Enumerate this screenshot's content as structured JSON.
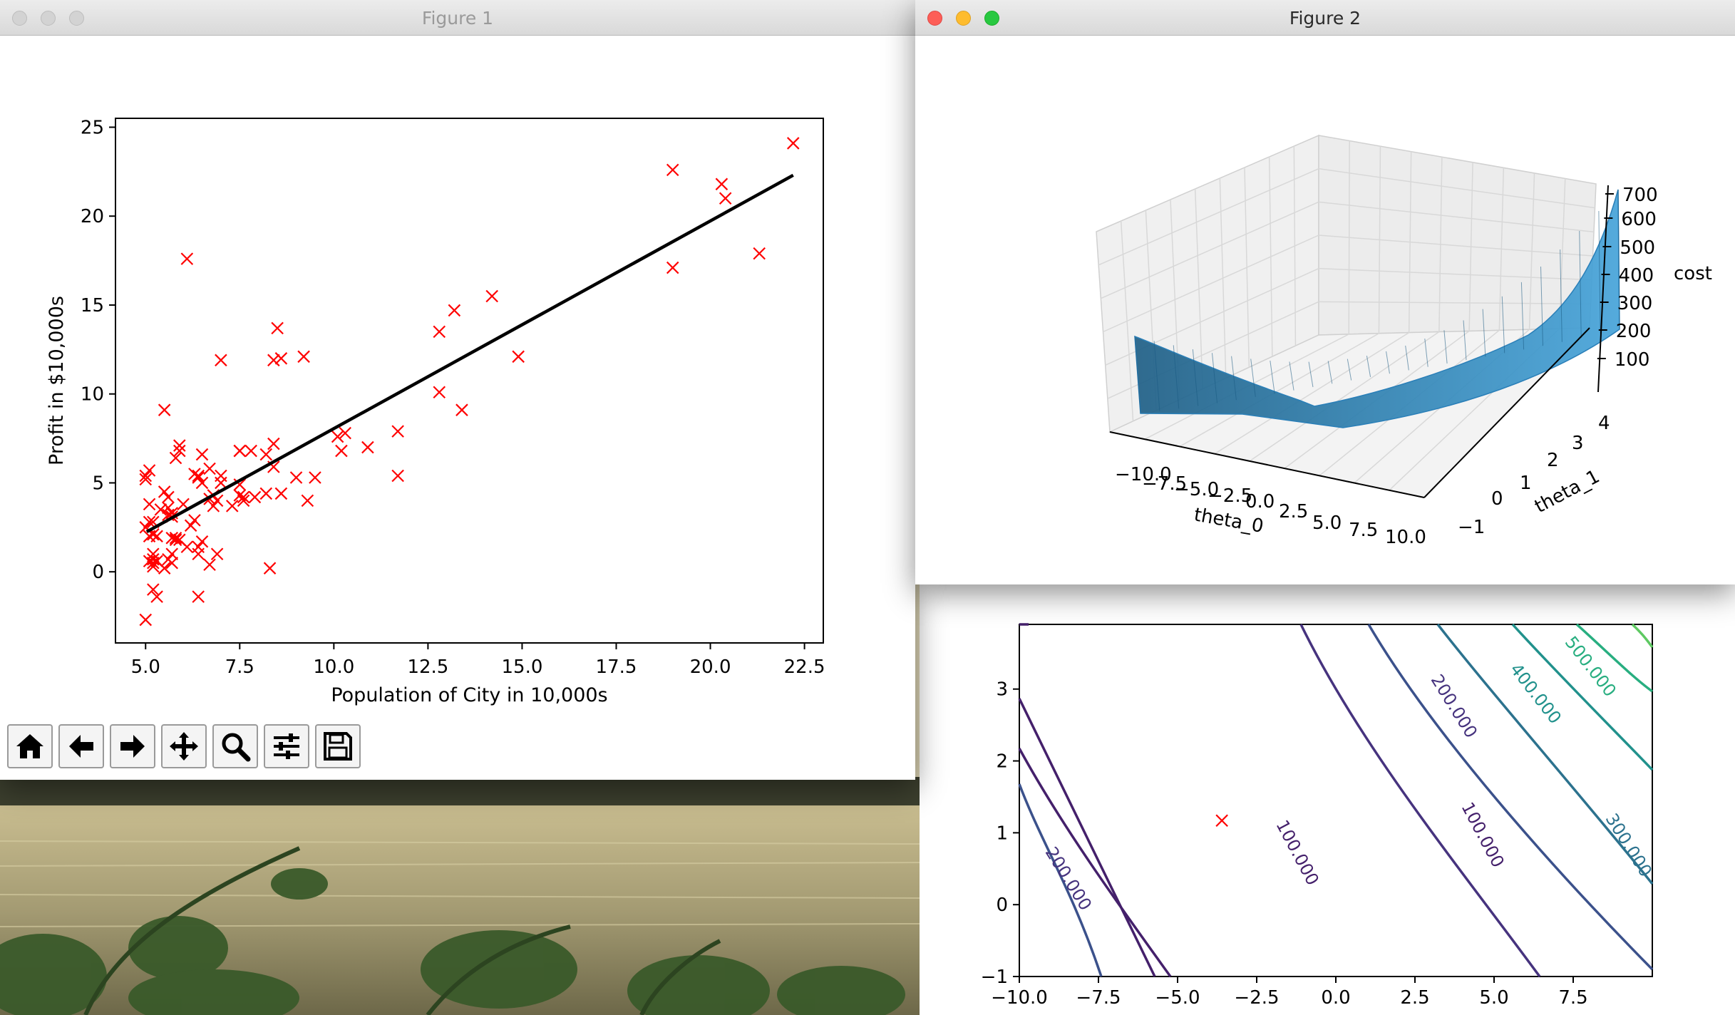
{
  "figure1": {
    "window_title": "Figure 1",
    "chart_data": {
      "type": "scatter",
      "title": "",
      "xlabel": "Population of City in 10,000s",
      "ylabel": "Profit in $10,000s",
      "xlim": [
        4.2,
        23.0
      ],
      "ylim": [
        -4.0,
        25.5
      ],
      "xticks": [
        "5.0",
        "7.5",
        "10.0",
        "12.5",
        "15.0",
        "17.5",
        "20.0",
        "22.5"
      ],
      "yticks": [
        "0",
        "5",
        "10",
        "15",
        "20",
        "25"
      ],
      "marker_color": "#ff0000",
      "line_color": "#000000",
      "points": [
        [
          6.1,
          17.6
        ],
        [
          5.5,
          9.1
        ],
        [
          8.5,
          13.7
        ],
        [
          7.0,
          11.9
        ],
        [
          5.9,
          6.8
        ],
        [
          8.4,
          11.9
        ],
        [
          7.5,
          4.3
        ],
        [
          8.6,
          12.0
        ],
        [
          6.5,
          6.6
        ],
        [
          5.1,
          3.8
        ],
        [
          5.7,
          3.3
        ],
        [
          14.2,
          15.5
        ],
        [
          5.7,
          3.1
        ],
        [
          8.4,
          7.2
        ],
        [
          5.6,
          0.7
        ],
        [
          5.4,
          3.5
        ],
        [
          6.4,
          5.4
        ],
        [
          5.1,
          5.7
        ],
        [
          6.0,
          3.8
        ],
        [
          5.2,
          0.7
        ],
        [
          9.2,
          12.1
        ],
        [
          5.0,
          5.2
        ],
        [
          8.2,
          6.6
        ],
        [
          6.2,
          2.6
        ],
        [
          5.9,
          1.8
        ],
        [
          12.8,
          13.5
        ],
        [
          6.4,
          5.3
        ],
        [
          5.1,
          2.8
        ],
        [
          10.3,
          7.8
        ],
        [
          5.1,
          0.6
        ],
        [
          6.4,
          1.4
        ],
        [
          6.7,
          5.8
        ],
        [
          5.2,
          0.5
        ],
        [
          5.2,
          2.1
        ],
        [
          6.3,
          5.5
        ],
        [
          5.5,
          0.2
        ],
        [
          5.8,
          6.4
        ],
        [
          6.8,
          3.7
        ],
        [
          5.3,
          0.6
        ],
        [
          5.9,
          7.1
        ],
        [
          8.4,
          5.9
        ],
        [
          5.7,
          1.0
        ],
        [
          8.6,
          4.4
        ],
        [
          9.3,
          4.0
        ],
        [
          5.6,
          3.6
        ],
        [
          13.2,
          14.7
        ],
        [
          6.1,
          1.4
        ],
        [
          6.9,
          1.0
        ],
        [
          5.2,
          -1.0
        ],
        [
          5.8,
          1.9
        ],
        [
          5.6,
          3.2
        ],
        [
          5.2,
          2.8
        ],
        [
          5.1,
          2.0
        ],
        [
          10.9,
          7.0
        ],
        [
          6.9,
          4.0
        ],
        [
          12.8,
          10.1
        ],
        [
          7.6,
          4.0
        ],
        [
          11.7,
          7.9
        ],
        [
          11.7,
          5.4
        ],
        [
          5.5,
          4.5
        ],
        [
          5.8,
          1.8
        ],
        [
          10.1,
          7.6
        ],
        [
          13.4,
          9.1
        ],
        [
          5.7,
          1.9
        ],
        [
          7.0,
          5.4
        ],
        [
          6.8,
          4.3
        ],
        [
          7.8,
          6.8
        ],
        [
          5.7,
          0.5
        ],
        [
          6.3,
          2.9
        ],
        [
          7.3,
          3.7
        ],
        [
          5.0,
          2.5
        ],
        [
          6.4,
          1.0
        ],
        [
          5.6,
          4.2
        ],
        [
          8.3,
          0.2
        ],
        [
          7.6,
          4.2
        ],
        [
          5.3,
          -1.4
        ],
        [
          5.3,
          2.0
        ],
        [
          6.4,
          -1.4
        ],
        [
          9.0,
          5.3
        ],
        [
          7.5,
          6.8
        ],
        [
          8.2,
          4.4
        ],
        [
          6.7,
          4.1
        ],
        [
          7.9,
          4.2
        ],
        [
          5.2,
          1.0
        ],
        [
          5.0,
          5.4
        ],
        [
          9.5,
          5.3
        ],
        [
          6.5,
          1.7
        ],
        [
          10.2,
          6.8
        ],
        [
          14.9,
          12.1
        ],
        [
          7.5,
          6.8
        ],
        [
          6.7,
          0.4
        ],
        [
          7.0,
          5.0
        ],
        [
          5.0,
          -2.7
        ],
        [
          5.2,
          0.3
        ],
        [
          7.5,
          4.9
        ],
        [
          19.0,
          22.6
        ],
        [
          20.3,
          21.8
        ],
        [
          20.4,
          21.0
        ],
        [
          19.0,
          17.1
        ],
        [
          21.3,
          17.9
        ],
        [
          22.2,
          24.1
        ],
        [
          6.5,
          5.0
        ]
      ],
      "fit_line": {
        "x": [
          5.03,
          22.2
        ],
        "y": [
          2.25,
          22.3
        ]
      }
    },
    "toolbar": [
      "home-icon",
      "back-arrow-icon",
      "forward-arrow-icon",
      "pan-move-icon",
      "zoom-magnifier-icon",
      "configure-subplots-icon",
      "save-disk-icon"
    ]
  },
  "figure2": {
    "window_title": "Figure 2",
    "chart_data": {
      "type": "surface",
      "title": "",
      "xlabel": "theta_0",
      "ylabel": "theta_1",
      "zlabel": "cost",
      "xticks": [
        "−10.0",
        "−7.5",
        "−5.0",
        "−2.5",
        "0.0",
        "2.5",
        "5.0",
        "7.5",
        "10.0"
      ],
      "yticks": [
        "−1",
        "0",
        "1",
        "2",
        "3",
        "4"
      ],
      "zticks": [
        "100",
        "200",
        "300",
        "400",
        "500",
        "600",
        "700"
      ],
      "xlim": [
        -10.0,
        10.0
      ],
      "ylim": [
        -1.0,
        4.0
      ],
      "zlim": [
        0,
        720
      ],
      "surface_color": "#2a7fb8"
    }
  },
  "figure3": {
    "chart_data": {
      "type": "contour",
      "title": "",
      "xticks": [
        "−10.0",
        "−7.5",
        "−5.0",
        "−2.5",
        "0.0",
        "2.5",
        "5.0",
        "7.5"
      ],
      "yticks": [
        "−1",
        "0",
        "1",
        "2",
        "3"
      ],
      "xlim": [
        -10.0,
        10.0
      ],
      "ylim": [
        -1.0,
        3.9
      ],
      "contour_labels": [
        "500.000",
        "400.000",
        "300.000",
        "200.000",
        "100.000",
        "100.000",
        "200.000"
      ],
      "minimum_marker": {
        "x": -3.6,
        "y": 1.17,
        "color": "#ff0000"
      }
    }
  }
}
